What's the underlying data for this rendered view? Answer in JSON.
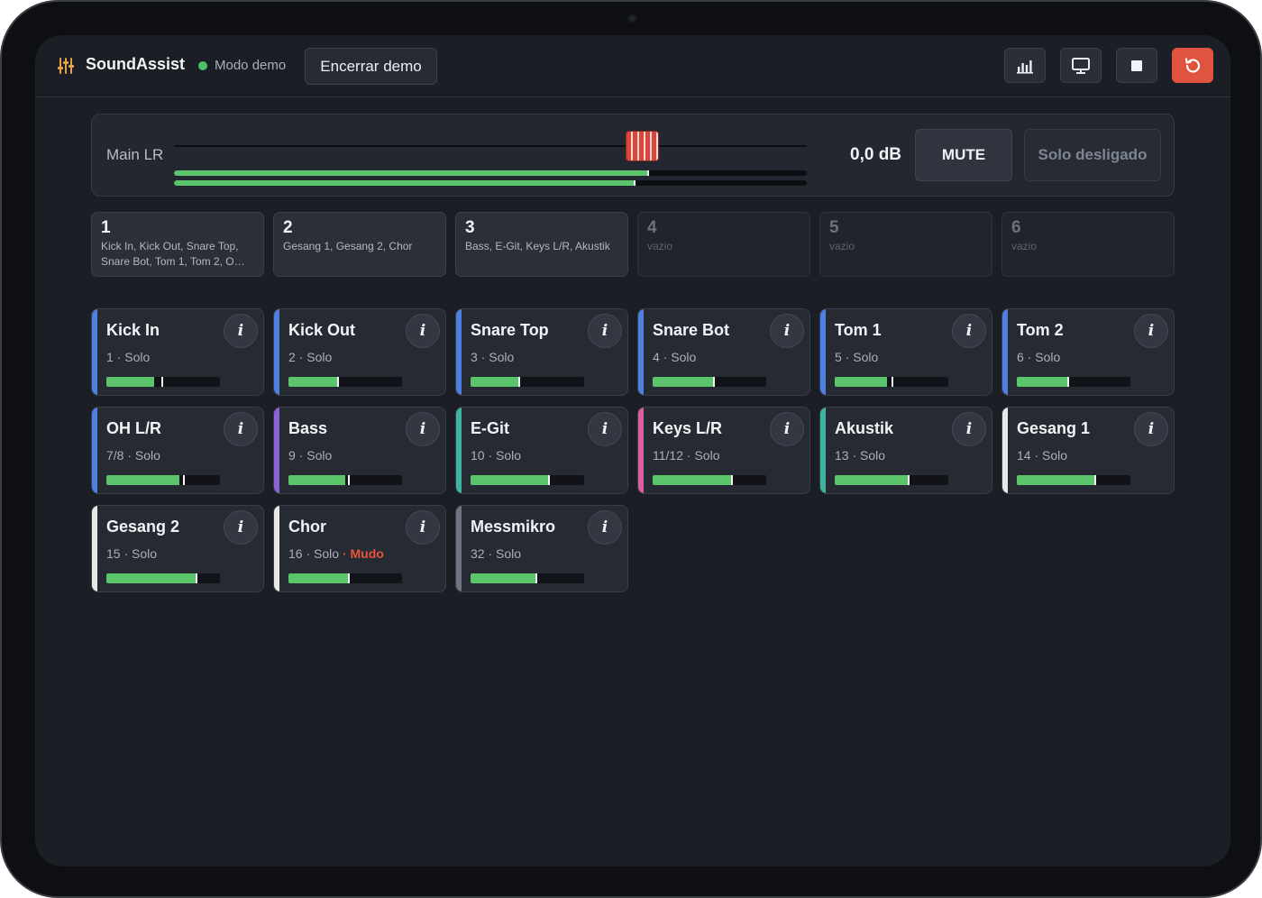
{
  "app": {
    "title": "SoundAssist",
    "demo_label": "Modo demo",
    "end_demo_label": "Encerrar demo"
  },
  "toolbar": {
    "icons": [
      "bar-chart-icon",
      "monitor-icon",
      "stop-icon",
      "reset-icon"
    ],
    "reset_color": "#e0533f"
  },
  "main": {
    "label": "Main LR",
    "db": "0,0 dB",
    "fader_level": 0.74,
    "meter_left": 0.75,
    "meter_right": 0.73,
    "mute_label": "MUTE",
    "solo_label": "Solo desligado"
  },
  "groups": [
    {
      "num": "1",
      "members": "Kick In, Kick Out, Snare Top, Snare Bot, Tom 1, Tom 2, O…",
      "empty": false
    },
    {
      "num": "2",
      "members": "Gesang 1, Gesang 2, Chor",
      "empty": false
    },
    {
      "num": "3",
      "members": "Bass, E-Git, Keys L/R, Akustik",
      "empty": false
    },
    {
      "num": "4",
      "members": "vazio",
      "empty": true
    },
    {
      "num": "5",
      "members": "vazio",
      "empty": true
    },
    {
      "num": "6",
      "members": "vazio",
      "empty": true
    }
  ],
  "solo_label": "Solo",
  "mute_tag": "Mudo",
  "info_label": "i",
  "channels": [
    {
      "name": "Kick In",
      "num": "1",
      "color": "#4f7fe0",
      "level": 0.42,
      "peak": 0.49
    },
    {
      "name": "Kick Out",
      "num": "2",
      "color": "#4f7fe0",
      "level": 0.44,
      "peak": 0.44
    },
    {
      "name": "Snare Top",
      "num": "3",
      "color": "#4f7fe0",
      "level": 0.43,
      "peak": 0.43
    },
    {
      "name": "Snare Bot",
      "num": "4",
      "color": "#4f7fe0",
      "level": 0.54,
      "peak": 0.54
    },
    {
      "name": "Tom 1",
      "num": "5",
      "color": "#4f7fe0",
      "level": 0.46,
      "peak": 0.51
    },
    {
      "name": "Tom 2",
      "num": "6",
      "color": "#4f7fe0",
      "level": 0.45,
      "peak": 0.45
    },
    {
      "name": "OH L/R",
      "num": "7/8",
      "color": "#4f7fe0",
      "level": 0.64,
      "peak": 0.68
    },
    {
      "name": "Bass",
      "num": "9",
      "color": "#8a64d6",
      "level": 0.5,
      "peak": 0.53
    },
    {
      "name": "E-Git",
      "num": "10",
      "color": "#3fb3a4",
      "level": 0.69,
      "peak": 0.69
    },
    {
      "name": "Keys L/R",
      "num": "11/12",
      "color": "#dd5f9c",
      "level": 0.7,
      "peak": 0.7
    },
    {
      "name": "Akustik",
      "num": "13",
      "color": "#3fb3a4",
      "level": 0.65,
      "peak": 0.65
    },
    {
      "name": "Gesang 1",
      "num": "14",
      "color": "#e8e8e8",
      "level": 0.69,
      "peak": 0.69
    },
    {
      "name": "Gesang 2",
      "num": "15",
      "color": "#e8e8e8",
      "level": 0.79,
      "peak": 0.79
    },
    {
      "name": "Chor",
      "num": "16",
      "color": "#e8e8e8",
      "level": 0.53,
      "peak": 0.53,
      "muted": true
    },
    {
      "name": "Messmikro",
      "num": "32",
      "color": "#6e7480",
      "level": 0.58,
      "peak": 0.58
    }
  ]
}
